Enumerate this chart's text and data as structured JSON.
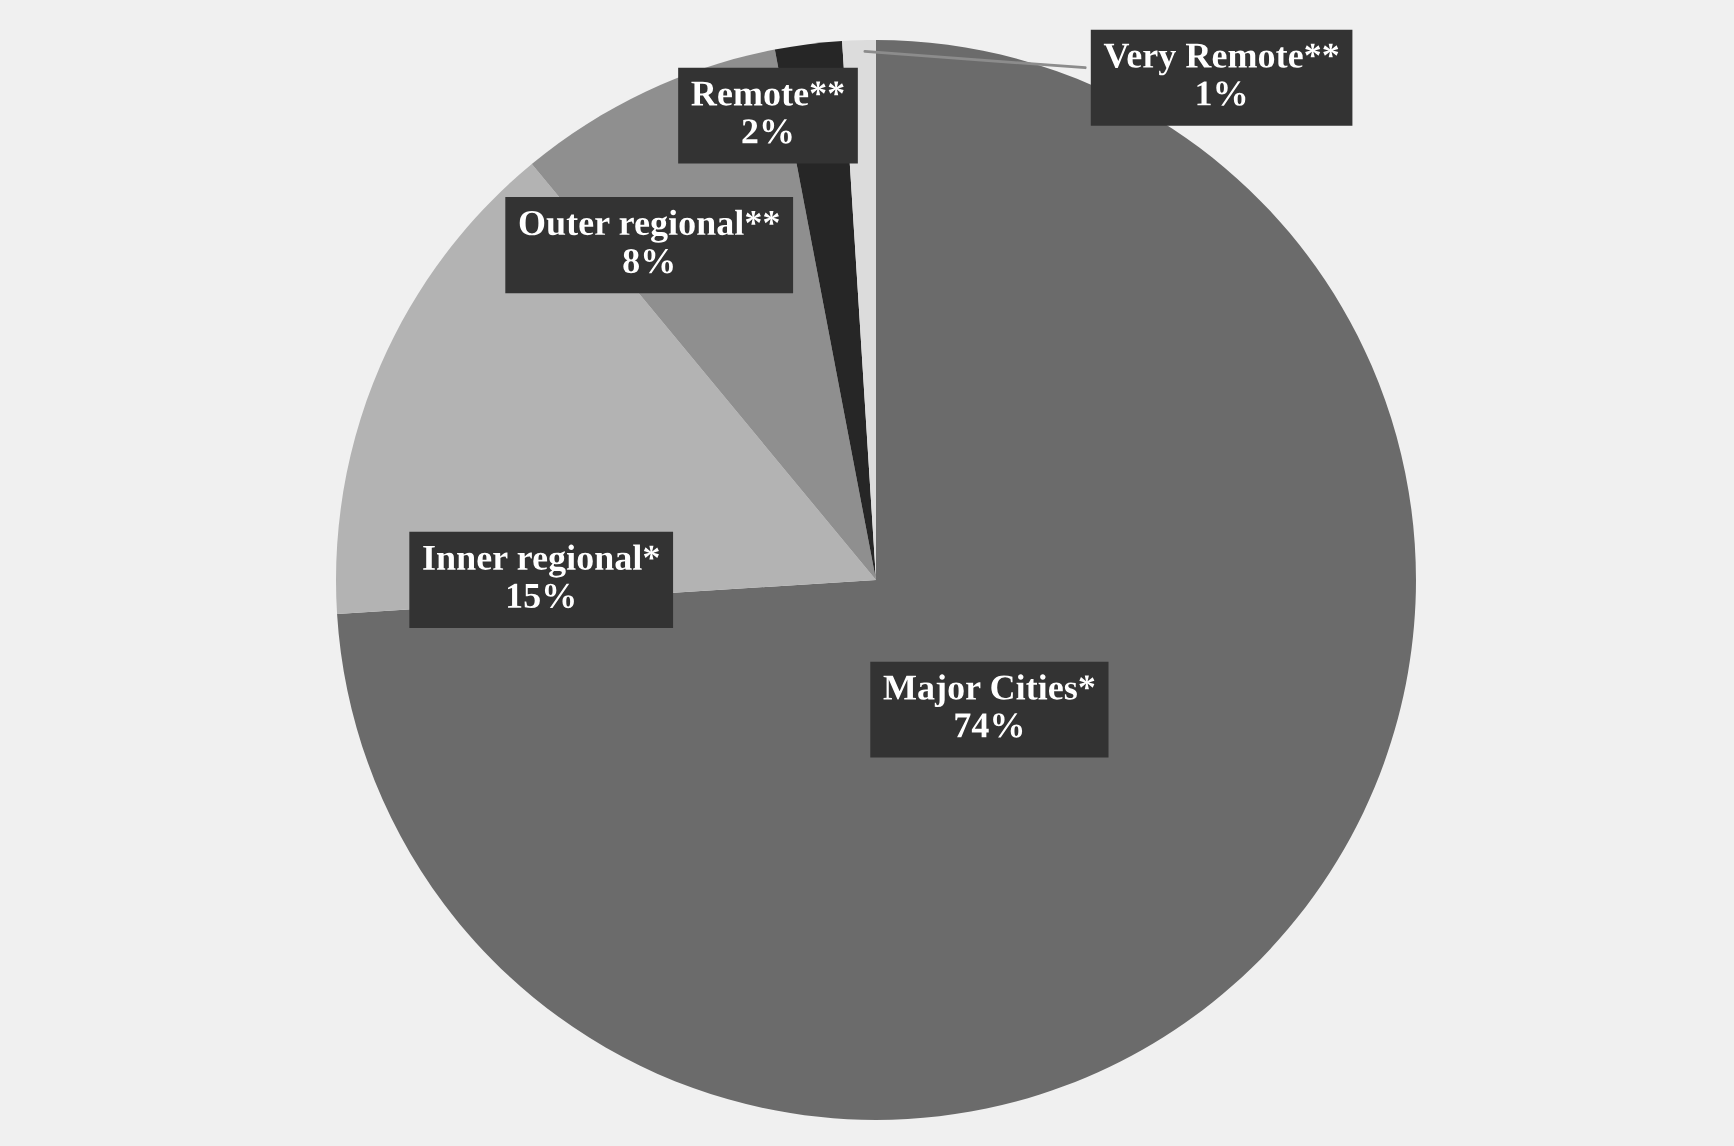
{
  "chart_data": {
    "type": "pie",
    "categories": [
      "Major Cities*",
      "Inner regional*",
      "Outer regional**",
      "Remote**",
      "Very Remote**"
    ],
    "values": [
      74,
      15,
      8,
      2,
      1
    ],
    "colors": [
      "#6b6b6b",
      "#b3b3b3",
      "#8f8f8f",
      "#262626",
      "#dcdcdc"
    ],
    "value_labels": [
      "74%",
      "15%",
      "8%",
      "2%",
      "1%"
    ],
    "legend": false
  }
}
